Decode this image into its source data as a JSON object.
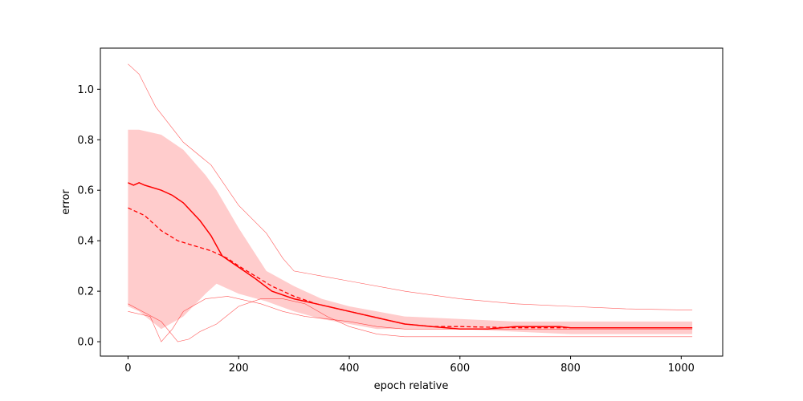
{
  "chart_data": {
    "type": "line",
    "title": "",
    "xlabel": "epoch relative",
    "ylabel": "error",
    "xlim": [
      -50,
      1075
    ],
    "ylim": [
      -0.057,
      1.163
    ],
    "xticks": [
      0,
      200,
      400,
      600,
      800,
      1000
    ],
    "yticks": [
      0.0,
      0.2,
      0.4,
      0.6,
      0.8,
      1.0
    ],
    "xtick_labels": [
      "0",
      "200",
      "400",
      "600",
      "800",
      "1000"
    ],
    "ytick_labels": [
      "0.0",
      "0.2",
      "0.4",
      "0.6",
      "0.8",
      "1.0"
    ],
    "grid": false,
    "legend": "none",
    "colors": {
      "main": "#ff0000",
      "band": "#ff9999"
    },
    "band": {
      "x": [
        0,
        20,
        60,
        100,
        140,
        160,
        200,
        250,
        300,
        350,
        400,
        450,
        500,
        600,
        700,
        800,
        900,
        1020
      ],
      "upper": [
        0.84,
        0.84,
        0.82,
        0.76,
        0.66,
        0.6,
        0.45,
        0.28,
        0.22,
        0.17,
        0.14,
        0.12,
        0.1,
        0.09,
        0.08,
        0.08,
        0.08,
        0.08
      ],
      "lower": [
        0.14,
        0.12,
        0.05,
        0.1,
        0.19,
        0.23,
        0.19,
        0.16,
        0.12,
        0.09,
        0.07,
        0.05,
        0.05,
        0.05,
        0.04,
        0.03,
        0.03,
        0.03
      ]
    },
    "series": [
      {
        "style": "solid",
        "x": [
          0,
          10,
          20,
          30,
          60,
          80,
          100,
          130,
          150,
          170,
          190,
          210,
          230,
          260,
          300,
          340,
          380,
          400,
          440,
          480,
          500,
          550,
          600,
          650,
          700,
          750,
          780,
          800,
          900,
          1020
        ],
        "y": [
          0.63,
          0.62,
          0.63,
          0.62,
          0.6,
          0.58,
          0.55,
          0.48,
          0.42,
          0.34,
          0.31,
          0.28,
          0.25,
          0.2,
          0.17,
          0.15,
          0.13,
          0.12,
          0.1,
          0.08,
          0.07,
          0.06,
          0.05,
          0.05,
          0.06,
          0.06,
          0.06,
          0.055,
          0.055,
          0.055
        ]
      },
      {
        "style": "dashed",
        "x": [
          0,
          30,
          60,
          90,
          120,
          150,
          180,
          200,
          230,
          260,
          300,
          340,
          380,
          420,
          460,
          500,
          550,
          600,
          700,
          800,
          900,
          1020
        ],
        "y": [
          0.53,
          0.5,
          0.44,
          0.4,
          0.38,
          0.36,
          0.33,
          0.3,
          0.26,
          0.22,
          0.18,
          0.15,
          0.13,
          0.11,
          0.09,
          0.07,
          0.06,
          0.06,
          0.055,
          0.055,
          0.055,
          0.055
        ]
      },
      {
        "style": "thin-max",
        "x": [
          0,
          20,
          50,
          100,
          150,
          200,
          250,
          280,
          300,
          350,
          400,
          500,
          600,
          700,
          800,
          900,
          1020
        ],
        "y": [
          1.1,
          1.06,
          0.93,
          0.79,
          0.7,
          0.54,
          0.43,
          0.33,
          0.28,
          0.26,
          0.24,
          0.2,
          0.17,
          0.15,
          0.14,
          0.13,
          0.125
        ]
      },
      {
        "style": "thin-min-a",
        "x": [
          0,
          40,
          60,
          80,
          100,
          140,
          180,
          200,
          240,
          280,
          320,
          360,
          400,
          450,
          500,
          600,
          700,
          800,
          900,
          1020
        ],
        "y": [
          0.12,
          0.1,
          0.0,
          0.05,
          0.12,
          0.17,
          0.18,
          0.17,
          0.15,
          0.12,
          0.1,
          0.09,
          0.08,
          0.06,
          0.05,
          0.05,
          0.05,
          0.05,
          0.05,
          0.05
        ]
      },
      {
        "style": "thin-min-b",
        "x": [
          0,
          60,
          90,
          110,
          130,
          160,
          200,
          240,
          280,
          320,
          360,
          400,
          450,
          500,
          600,
          700,
          800,
          900,
          1020
        ],
        "y": [
          0.15,
          0.08,
          0.0,
          0.01,
          0.04,
          0.07,
          0.14,
          0.17,
          0.17,
          0.15,
          0.1,
          0.06,
          0.03,
          0.02,
          0.02,
          0.02,
          0.02,
          0.02,
          0.02
        ]
      }
    ]
  }
}
